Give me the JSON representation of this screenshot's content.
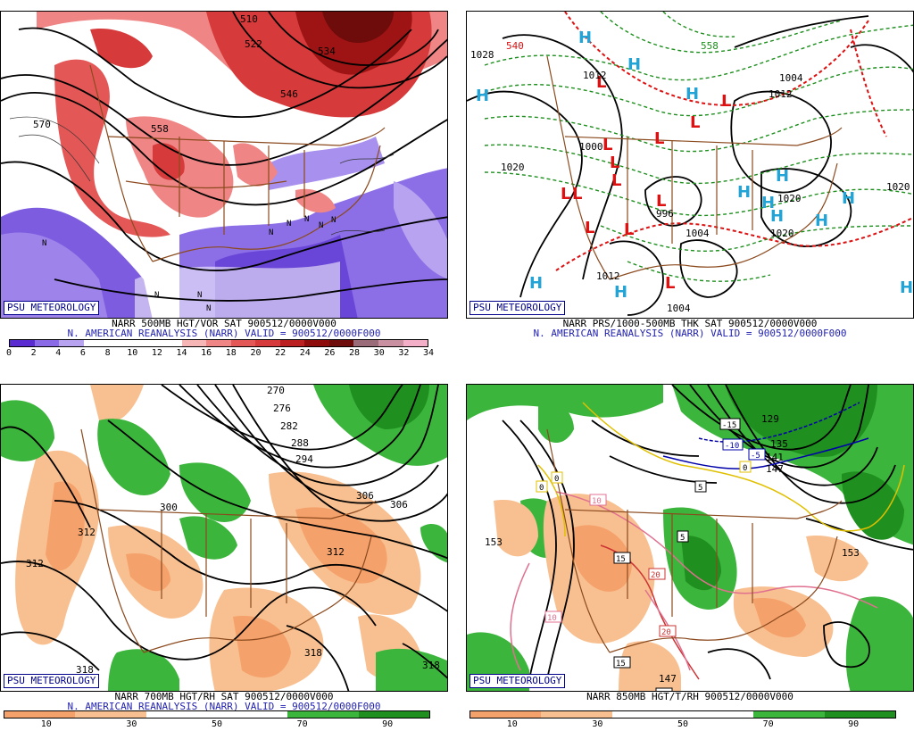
{
  "panels": [
    {
      "badge": "PSU METEOROLOGY",
      "caption_line1": "NARR 500MB HGT/VOR SAT 900512/0000V000",
      "caption_line2": "N. AMERICAN REANALYSIS (NARR) VALID = 900512/0000F000",
      "colorbar": {
        "colors": [
          "#5a2bd0",
          "#8a6ae6",
          "#b7a3f0",
          "#ffffff",
          "#ffffff",
          "#ffffff",
          "#ffffff",
          "#f6b6b6",
          "#ef8585",
          "#e45757",
          "#d63a3a",
          "#bb1f1f",
          "#8f0c0c",
          "#6e0b0b",
          "#9a6c7a",
          "#c890a0",
          "#f3aec8"
        ],
        "labels": [
          "0",
          "2",
          "4",
          "6",
          "8",
          "10",
          "12",
          "14",
          "16",
          "18",
          "20",
          "22",
          "24",
          "26",
          "28",
          "30",
          "32",
          "34"
        ]
      },
      "contour_labels": [
        "510",
        "522",
        "546",
        "570",
        "558",
        "534"
      ]
    },
    {
      "badge": "PSU METEOROLOGY",
      "caption_line1": "NARR PRS/1000-500MB THK SAT 900512/0000V000",
      "caption_line2": "N. AMERICAN REANALYSIS (NARR) VALID = 900512/0000F000",
      "high_symbol": "H",
      "low_symbol": "L",
      "pressure_labels": [
        "1028",
        "1020",
        "1012",
        "1004",
        "1000",
        "996",
        "1020",
        "1020",
        "1012",
        "1004",
        "1012",
        "1020",
        "1004",
        "1008"
      ],
      "thickness_labels": [
        "540",
        "558"
      ]
    },
    {
      "badge": "PSU METEOROLOGY",
      "caption_line1": "NARR 700MB HGT/RH SAT 900512/0000V000",
      "caption_line2": "N. AMERICAN REANALYSIS (NARR) VALID = 900512/0000F000",
      "colorbar": {
        "colors": [
          "#f5a16b",
          "#f5a16b",
          "#f8c090",
          "#f8c090",
          "#ffffff",
          "#ffffff",
          "#ffffff",
          "#ffffff",
          "#3cb53c",
          "#3cb53c",
          "#1f8f1f",
          "#1f8f1f"
        ],
        "labels": [
          "10",
          "30",
          "50",
          "70",
          "90"
        ]
      },
      "contour_labels": [
        "270",
        "276",
        "282",
        "288",
        "294",
        "300",
        "306",
        "306",
        "312",
        "312",
        "312",
        "318",
        "318",
        "318"
      ]
    },
    {
      "badge": "PSU METEOROLOGY",
      "caption_line1": "NARR 850MB HGT/T/RH 900512/0000V000",
      "colorbar": {
        "colors": [
          "#f5a16b",
          "#f5a16b",
          "#f8c090",
          "#f8c090",
          "#ffffff",
          "#ffffff",
          "#ffffff",
          "#ffffff",
          "#3cb53c",
          "#3cb53c",
          "#1f8f1f",
          "#1f8f1f"
        ],
        "labels": [
          "10",
          "30",
          "50",
          "70",
          "90"
        ]
      },
      "contour_labels": [
        "153",
        "153",
        "147",
        "141",
        "135",
        "129",
        "147"
      ],
      "temp_labels": [
        "-15",
        "-10",
        "-5",
        "0",
        "0",
        "0",
        "5",
        "5",
        "10",
        "10",
        "15",
        "15",
        "20",
        "20",
        "25"
      ]
    }
  ]
}
